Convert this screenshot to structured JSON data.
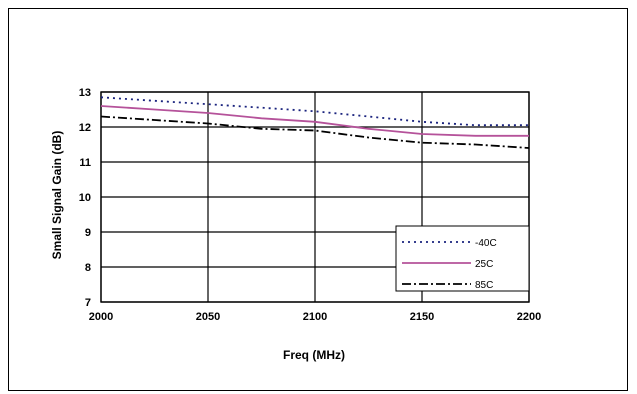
{
  "chart_data": {
    "type": "line",
    "title": "",
    "xlabel": "Freq (MHz)",
    "ylabel": "Small Signal Gain (dB)",
    "xlim": [
      2000,
      2200
    ],
    "ylim": [
      7,
      13
    ],
    "x_ticks": [
      "2000",
      "2050",
      "2100",
      "2150",
      "2200"
    ],
    "y_ticks": [
      "7",
      "8",
      "9",
      "10",
      "11",
      "12",
      "13"
    ],
    "grid": true,
    "legend_position": "bottom-right",
    "series": [
      {
        "name": "-40C",
        "color": "#1a237e",
        "dash": "dotted",
        "x": [
          2000,
          2025,
          2050,
          2075,
          2100,
          2125,
          2150,
          2175,
          2200
        ],
        "y": [
          12.85,
          12.75,
          12.65,
          12.55,
          12.45,
          12.3,
          12.15,
          12.05,
          12.05
        ]
      },
      {
        "name": "25C",
        "color": "#b5529a",
        "dash": "solid",
        "x": [
          2000,
          2025,
          2050,
          2075,
          2100,
          2125,
          2150,
          2175,
          2200
        ],
        "y": [
          12.6,
          12.5,
          12.4,
          12.25,
          12.15,
          11.95,
          11.8,
          11.75,
          11.75
        ]
      },
      {
        "name": "85C",
        "color": "#000000",
        "dash": "dashdot",
        "x": [
          2000,
          2025,
          2050,
          2075,
          2100,
          2125,
          2150,
          2175,
          2200
        ],
        "y": [
          12.3,
          12.2,
          12.1,
          11.95,
          11.9,
          11.7,
          11.55,
          11.5,
          11.4
        ]
      }
    ]
  }
}
